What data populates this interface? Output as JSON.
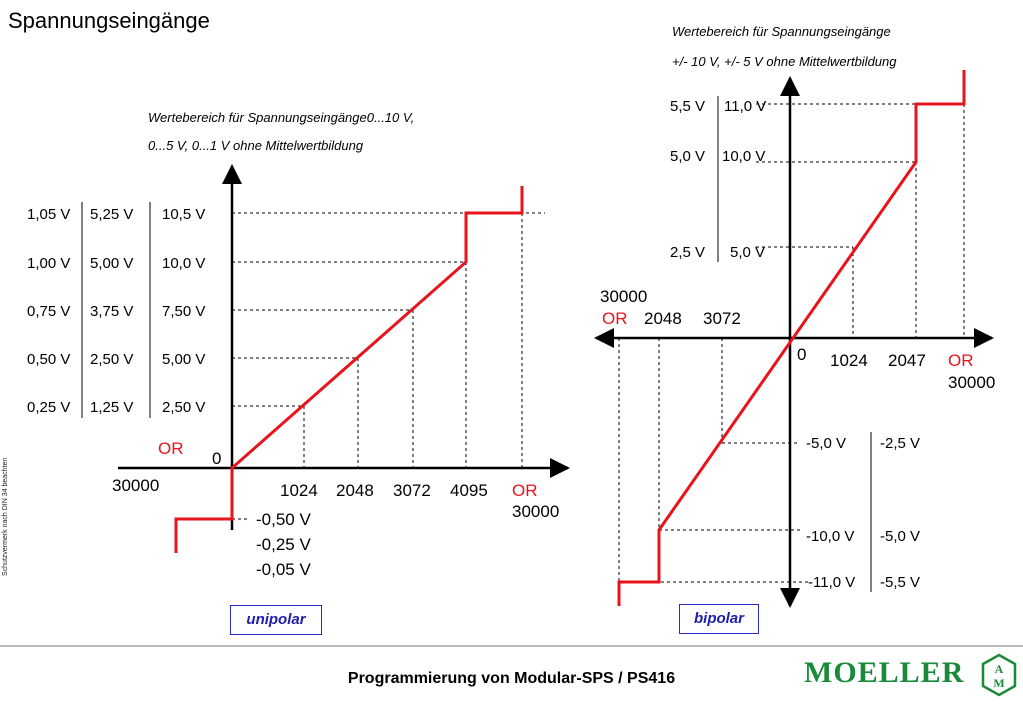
{
  "title": "Spannungseingänge",
  "unipolar": {
    "caption_line1": "Wertebereich für Spannungseingänge0...10 V,",
    "caption_line2": "0...5 V, 0...1 V  ohne Mittelwertbildung",
    "col1": [
      "1,05 V",
      "1,00 V",
      "0,75 V",
      "0,50 V",
      "0,25 V"
    ],
    "col2": [
      "5,25 V",
      "5,00 V",
      "3,75 V",
      "2,50 V",
      "1,25 V"
    ],
    "col3": [
      "10,5 V",
      "10,0 V",
      "7,50 V",
      "5,00 V",
      "2,50 V"
    ],
    "neg_values": [
      "-0,50 V",
      "-0,25 V",
      "-0,05 V"
    ],
    "x_ticks": [
      "1024",
      "2048",
      "3072",
      "4095"
    ],
    "zero": "0",
    "or_left": "OR",
    "or_left_value": "30000",
    "or_right": "OR",
    "or_right_value": "30000",
    "label": "unipolar"
  },
  "bipolar": {
    "caption_line1": "Wertebereich für Spannungseingänge",
    "caption_line2": "+/- 10 V, +/- 5 V  ohne Mittelwertbildung",
    "pos_col1": [
      "5,5 V",
      "5,0 V",
      "2,5 V"
    ],
    "pos_col2": [
      "11,0 V",
      "10,0 V",
      "5,0 V"
    ],
    "neg_col1": [
      "-5,0 V",
      "-10,0 V",
      "-11,0 V"
    ],
    "neg_col2": [
      "-2,5 V",
      "-5,0 V",
      "-5,5 V"
    ],
    "left_ticks": [
      "2048",
      "3072"
    ],
    "right_ticks": [
      "1024",
      "2047"
    ],
    "zero": "0",
    "or_left": "OR",
    "or_left_value": "30000",
    "or_right": "OR",
    "or_right_value": "30000",
    "label": "bipolar"
  },
  "footer": {
    "title": "Programmierung von Modular-SPS / PS416",
    "side_note": "Schutzvermerk nach DIN 34 beachten",
    "logo": "MOELLER"
  },
  "colors": {
    "curve": "#e8141c",
    "or_text": "#e8141c",
    "label_box": "#2b2bd6",
    "logo": "#1a8a3a"
  }
}
